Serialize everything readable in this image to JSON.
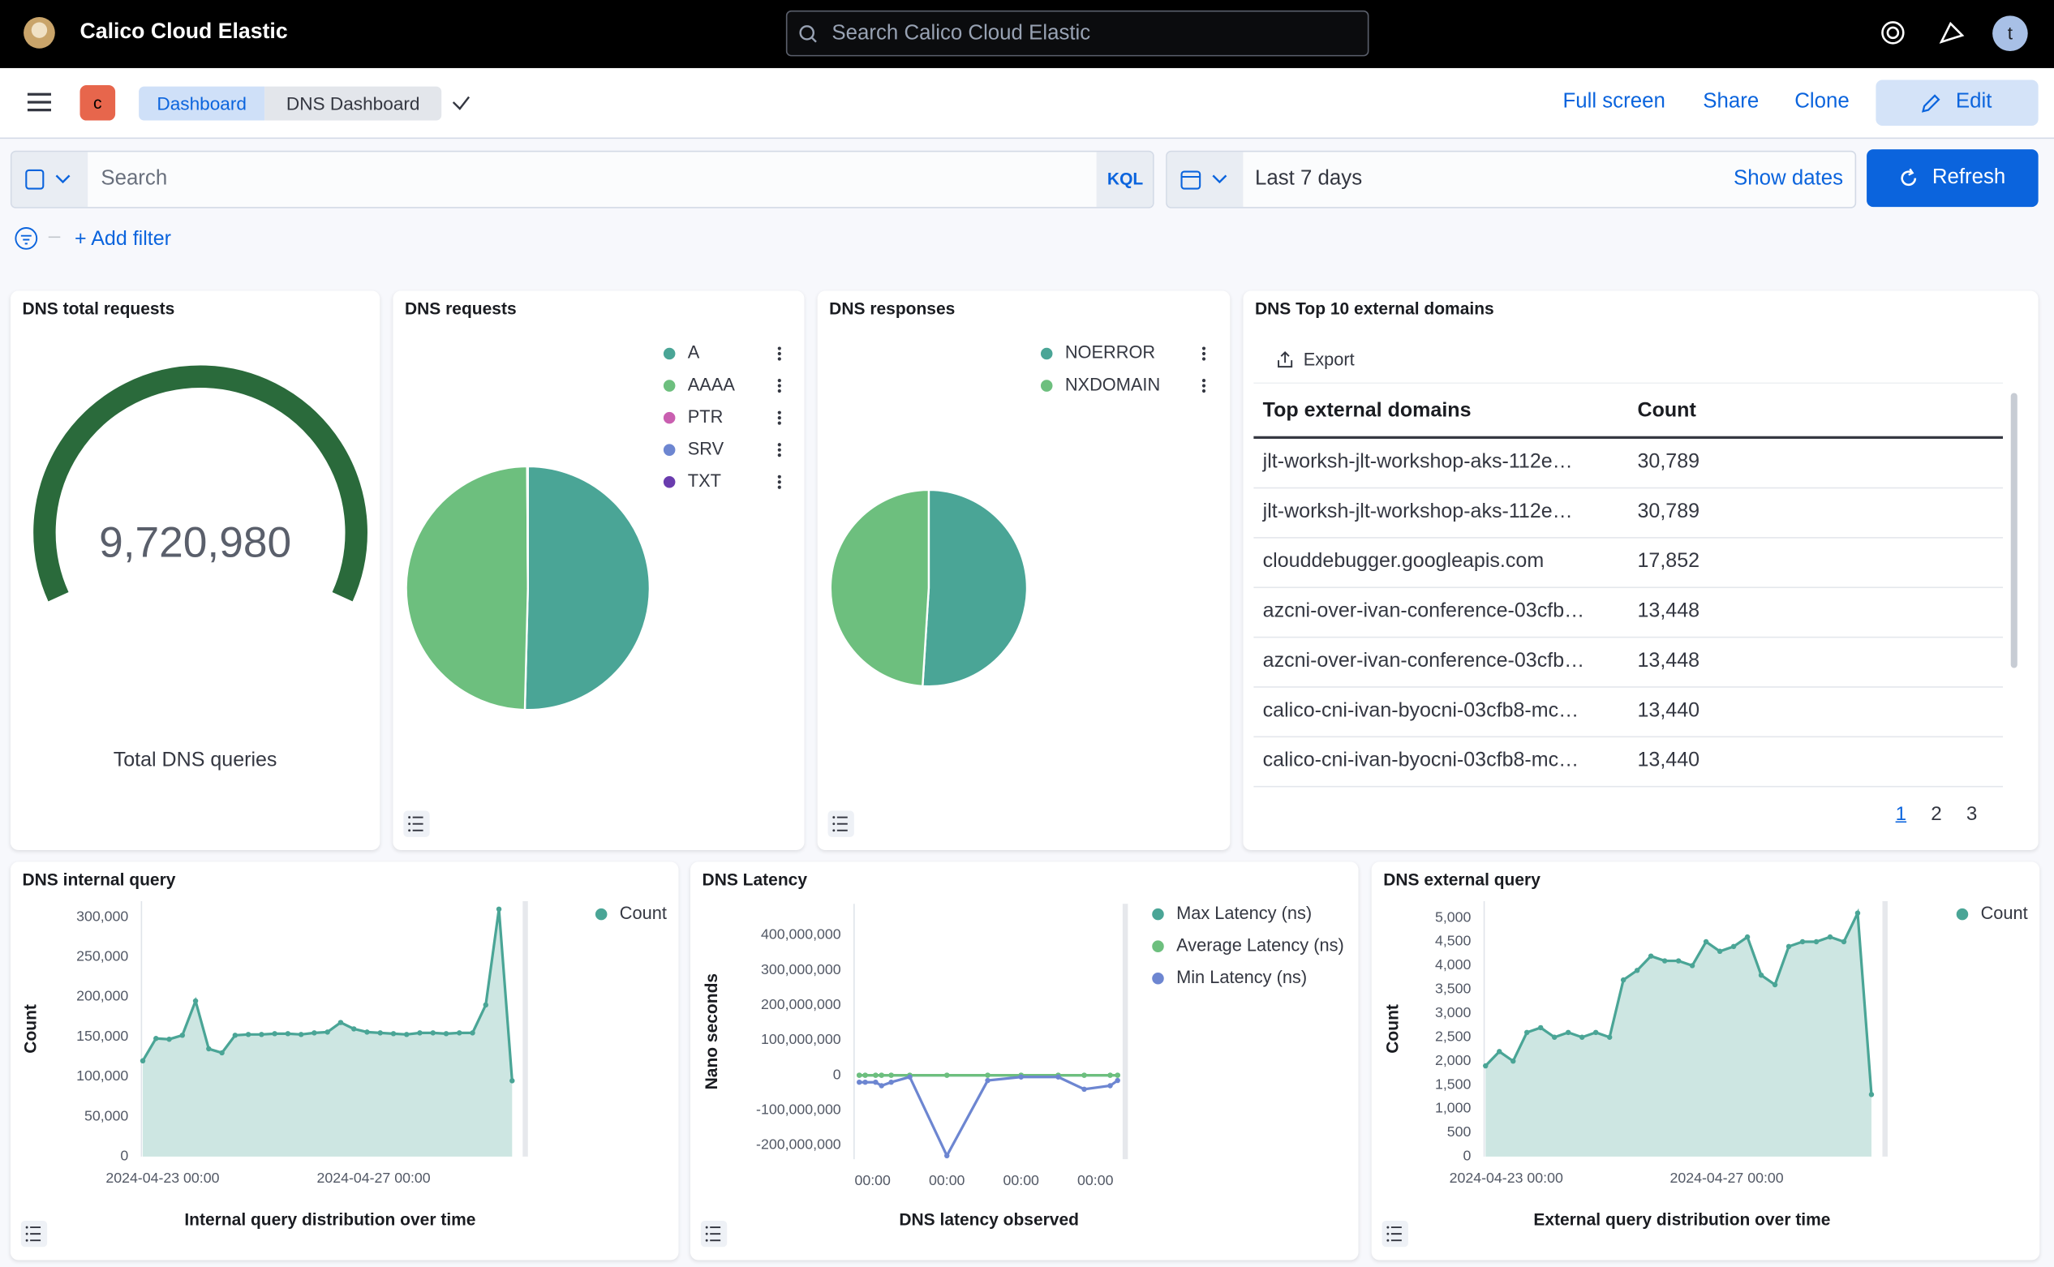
{
  "header": {
    "brand": "Calico Cloud Elastic",
    "search": "Search Calico Cloud Elastic",
    "avatar": "t"
  },
  "nav": {
    "space": "c",
    "breadcrumbs": [
      "Dashboard",
      "DNS Dashboard"
    ],
    "actions": [
      "Full screen",
      "Share",
      "Clone",
      "Edit"
    ]
  },
  "query": {
    "search": "Search",
    "language": "KQL",
    "time": "Last 7 days",
    "show_dates": "Show dates",
    "refresh": "Refresh",
    "add_filter": "+ Add filter"
  },
  "panels": {
    "total": {
      "title": "DNS total requests",
      "value": "9,720,980",
      "label": "Total DNS queries"
    },
    "requests": {
      "title": "DNS requests",
      "type": "pie",
      "categories": [
        "A",
        "AAAA",
        "PTR",
        "SRV",
        "TXT"
      ],
      "values": [
        50.4,
        49.5,
        0.05,
        0.03,
        0.02
      ],
      "colors": [
        "#4aa596",
        "#6dbf7e",
        "#c95fb0",
        "#6d86d1",
        "#6a3cae"
      ]
    },
    "responses": {
      "title": "DNS responses",
      "type": "pie",
      "categories": [
        "NOERROR",
        "NXDOMAIN"
      ],
      "values": [
        51,
        49
      ],
      "colors": [
        "#4aa596",
        "#6dbf7e"
      ]
    },
    "domains": {
      "title": "DNS Top 10 external domains",
      "export": "Export",
      "columns": [
        "Top external domains",
        "Count"
      ],
      "rows": [
        [
          "jlt-worksh-jlt-workshop-aks-112e…",
          "30,789"
        ],
        [
          "jlt-worksh-jlt-workshop-aks-112e…",
          "30,789"
        ],
        [
          "clouddebugger.googleapis.com",
          "17,852"
        ],
        [
          "azcni-over-ivan-conference-03cfb…",
          "13,448"
        ],
        [
          "azcni-over-ivan-conference-03cfb…",
          "13,448"
        ],
        [
          "calico-cni-ivan-byocni-03cfb8-mc…",
          "13,440"
        ],
        [
          "calico-cni-ivan-byocni-03cfb8-mc…",
          "13,440"
        ]
      ],
      "pages": [
        "1",
        "2",
        "3"
      ]
    },
    "internal": {
      "title": "DNS internal query",
      "type": "area",
      "ylabel": "Count",
      "xlabel": "Internal query distribution over time",
      "x": [
        -0.375,
        -0.125,
        0.125,
        0.375,
        0.625,
        0.875,
        1.125,
        1.375,
        1.625,
        1.875,
        2.125,
        2.375,
        2.625,
        2.875,
        3.125,
        3.375,
        3.625,
        3.875,
        4.125,
        4.375,
        4.625,
        4.875,
        5.125,
        5.375,
        5.625,
        5.875,
        6.125,
        6.375,
        6.625
      ],
      "xlim": [
        -0.4,
        6.8
      ],
      "xticks": [
        {
          "value": 0,
          "label": "2024-04-23 00:00"
        },
        {
          "value": 4,
          "label": "2024-04-27 00:00"
        }
      ],
      "ylim": [
        0,
        320000
      ],
      "yticks": [
        0,
        {
          "value": 50000,
          "label": "50,000"
        },
        {
          "value": 100000,
          "label": "100,000"
        },
        {
          "value": 150000,
          "label": "150,000"
        },
        {
          "value": 200000,
          "label": "200,000"
        },
        {
          "value": 250000,
          "label": "250,000"
        },
        {
          "value": 300000,
          "label": "300,000"
        }
      ],
      "series": [
        {
          "name": "Count",
          "color": "#4aa596",
          "values": [
            120000,
            148000,
            147000,
            152000,
            195000,
            135000,
            130000,
            152000,
            153000,
            153000,
            154000,
            154000,
            153000,
            155000,
            156000,
            168000,
            160000,
            156000,
            155000,
            154000,
            153000,
            155000,
            155000,
            154000,
            155000,
            155000,
            190000,
            310000,
            95000
          ]
        }
      ]
    },
    "latency": {
      "title": "DNS Latency",
      "type": "line",
      "ylabel": "Nano seconds",
      "xlabel": "DNS latency observed",
      "x": [
        -0.18,
        -0.1,
        0.04,
        0.12,
        0.25,
        0.5,
        1.0,
        1.55,
        2.0,
        2.5,
        2.85,
        3.2,
        3.3
      ],
      "xlim": [
        -0.25,
        3.35
      ],
      "xticks": [
        {
          "value": 0,
          "label": "00:00"
        },
        {
          "value": 1,
          "label": "00:00"
        },
        {
          "value": 2,
          "label": "00:00"
        },
        {
          "value": 3,
          "label": "00:00"
        }
      ],
      "ylim": [
        -240000000,
        490000000
      ],
      "yticks": [
        {
          "value": -200000000,
          "label": "-200,000,000"
        },
        {
          "value": -100000000,
          "label": "-100,000,000"
        },
        0,
        {
          "value": 100000000,
          "label": "100,000,000"
        },
        {
          "value": 200000000,
          "label": "200,000,000"
        },
        {
          "value": 300000000,
          "label": "300,000,000"
        },
        {
          "value": 400000000,
          "label": "400,000,000"
        }
      ],
      "series": [
        {
          "name": "Max Latency (ns)",
          "color": "#4aa596",
          "values": [
            0,
            0,
            0,
            0,
            0,
            0,
            0,
            0,
            0,
            0,
            0,
            0,
            0
          ]
        },
        {
          "name": "Average Latency (ns)",
          "color": "#6dbf7e",
          "values": [
            0,
            0,
            0,
            0,
            0,
            0,
            0,
            0,
            0,
            0,
            0,
            0,
            0
          ]
        },
        {
          "name": "Min Latency (ns)",
          "color": "#6d86d1",
          "values": [
            -20000000,
            -20000000,
            -20000000,
            -30000000,
            -20000000,
            -5000000,
            -230000000,
            -15000000,
            -5000000,
            -5000000,
            -40000000,
            -30000000,
            -15000000
          ]
        }
      ]
    },
    "external": {
      "title": "DNS external query",
      "type": "area",
      "ylabel": "Count",
      "xlabel": "External query distribution over time",
      "x": [
        -0.375,
        -0.125,
        0.125,
        0.375,
        0.625,
        0.875,
        1.125,
        1.375,
        1.625,
        1.875,
        2.125,
        2.375,
        2.625,
        2.875,
        3.125,
        3.375,
        3.625,
        3.875,
        4.125,
        4.375,
        4.625,
        4.875,
        5.125,
        5.375,
        5.625,
        5.875,
        6.125,
        6.375,
        6.625
      ],
      "xlim": [
        -0.4,
        6.8
      ],
      "xticks": [
        {
          "value": 0,
          "label": "2024-04-23 00:00"
        },
        {
          "value": 4,
          "label": "2024-04-27 00:00"
        }
      ],
      "ylim": [
        0,
        5350
      ],
      "yticks": [
        0,
        500,
        {
          "value": 1000,
          "label": "1,000"
        },
        {
          "value": 1500,
          "label": "1,500"
        },
        {
          "value": 2000,
          "label": "2,000"
        },
        {
          "value": 2500,
          "label": "2,500"
        },
        {
          "value": 3000,
          "label": "3,000"
        },
        {
          "value": 3500,
          "label": "3,500"
        },
        {
          "value": 4000,
          "label": "4,000"
        },
        {
          "value": 4500,
          "label": "4,500"
        },
        {
          "value": 5000,
          "label": "5,000"
        }
      ],
      "series": [
        {
          "name": "Count",
          "color": "#4aa596",
          "values": [
            1900,
            2200,
            2000,
            2600,
            2700,
            2500,
            2600,
            2500,
            2600,
            2500,
            3700,
            3900,
            4200,
            4100,
            4100,
            4000,
            4500,
            4300,
            4400,
            4600,
            3800,
            3600,
            4400,
            4500,
            4500,
            4600,
            4500,
            5100,
            1300
          ]
        }
      ]
    }
  }
}
